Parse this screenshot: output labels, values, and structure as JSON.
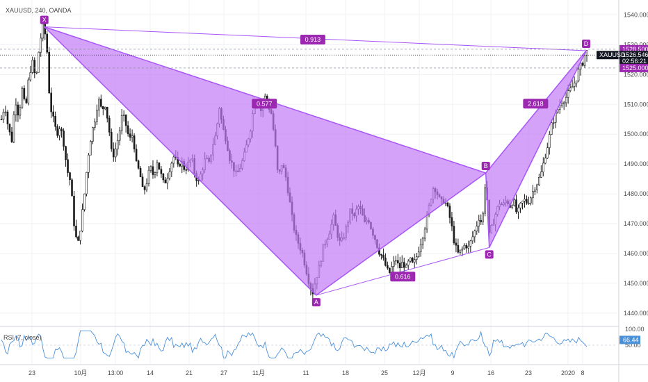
{
  "header": {
    "title": "XAUUSD, 240, OANDA"
  },
  "colors": {
    "up": "#1a1a1a",
    "down": "#1a1a1a",
    "pattern_fill": "#c27af5",
    "pattern_line": "#a855f7",
    "label_bg": "#9c27b0",
    "rsi_line": "#4a90d9",
    "grid": "#eef0f4",
    "axis_text": "#4a4a4a"
  },
  "chart_data": [
    {
      "type": "line",
      "title": "XAUUSD, 240, OANDA",
      "xlabel": "",
      "ylabel": "",
      "ylim": [
        1436,
        1545
      ],
      "y_ticks": [
        "1540.000",
        "1530.000",
        "1520.000",
        "1510.000",
        "1500.000",
        "1490.000",
        "1480.000",
        "1470.000",
        "1460.000",
        "1450.000",
        "1440.000"
      ],
      "x_ticks": [
        "23",
        "10月",
        "13:00",
        "14",
        "21",
        "27",
        "11月",
        "11",
        "18",
        "25",
        "12月",
        "9",
        "16",
        "23",
        "2020",
        "8"
      ],
      "price_series": [
        {
          "x": 0,
          "y": 1505
        },
        {
          "x": 5,
          "y": 1510
        },
        {
          "x": 10,
          "y": 1502
        },
        {
          "x": 15,
          "y": 1498
        },
        {
          "x": 20,
          "y": 1512
        },
        {
          "x": 25,
          "y": 1506
        },
        {
          "x": 30,
          "y": 1515
        },
        {
          "x": 35,
          "y": 1508
        },
        {
          "x": 40,
          "y": 1520
        },
        {
          "x": 45,
          "y": 1524
        },
        {
          "x": 50,
          "y": 1518
        },
        {
          "x": 55,
          "y": 1530
        },
        {
          "x": 60,
          "y": 1536
        },
        {
          "x": 65,
          "y": 1532
        },
        {
          "x": 70,
          "y": 1510
        },
        {
          "x": 75,
          "y": 1505
        },
        {
          "x": 80,
          "y": 1500
        },
        {
          "x": 85,
          "y": 1503
        },
        {
          "x": 90,
          "y": 1497
        },
        {
          "x": 95,
          "y": 1488
        },
        {
          "x": 100,
          "y": 1484
        },
        {
          "x": 105,
          "y": 1470
        },
        {
          "x": 110,
          "y": 1462
        },
        {
          "x": 115,
          "y": 1470
        },
        {
          "x": 120,
          "y": 1480
        },
        {
          "x": 125,
          "y": 1492
        },
        {
          "x": 130,
          "y": 1500
        },
        {
          "x": 135,
          "y": 1505
        },
        {
          "x": 140,
          "y": 1512
        },
        {
          "x": 145,
          "y": 1508
        },
        {
          "x": 150,
          "y": 1510
        },
        {
          "x": 155,
          "y": 1503
        },
        {
          "x": 160,
          "y": 1492
        },
        {
          "x": 165,
          "y": 1495
        },
        {
          "x": 170,
          "y": 1500
        },
        {
          "x": 175,
          "y": 1507
        },
        {
          "x": 180,
          "y": 1503
        },
        {
          "x": 185,
          "y": 1498
        },
        {
          "x": 190,
          "y": 1500
        },
        {
          "x": 195,
          "y": 1490
        },
        {
          "x": 200,
          "y": 1487
        },
        {
          "x": 205,
          "y": 1480
        },
        {
          "x": 210,
          "y": 1484
        },
        {
          "x": 215,
          "y": 1489
        },
        {
          "x": 220,
          "y": 1486
        },
        {
          "x": 225,
          "y": 1491
        },
        {
          "x": 230,
          "y": 1487
        },
        {
          "x": 235,
          "y": 1483
        },
        {
          "x": 240,
          "y": 1486
        },
        {
          "x": 245,
          "y": 1490
        },
        {
          "x": 250,
          "y": 1493
        },
        {
          "x": 255,
          "y": 1489
        },
        {
          "x": 260,
          "y": 1491
        },
        {
          "x": 265,
          "y": 1488
        },
        {
          "x": 270,
          "y": 1490
        },
        {
          "x": 275,
          "y": 1492
        },
        {
          "x": 280,
          "y": 1486
        },
        {
          "x": 285,
          "y": 1484
        },
        {
          "x": 290,
          "y": 1488
        },
        {
          "x": 295,
          "y": 1492
        },
        {
          "x": 300,
          "y": 1490
        },
        {
          "x": 305,
          "y": 1496
        },
        {
          "x": 310,
          "y": 1500
        },
        {
          "x": 315,
          "y": 1509
        },
        {
          "x": 320,
          "y": 1502
        },
        {
          "x": 325,
          "y": 1498
        },
        {
          "x": 330,
          "y": 1492
        },
        {
          "x": 335,
          "y": 1489
        },
        {
          "x": 340,
          "y": 1486
        },
        {
          "x": 345,
          "y": 1489
        },
        {
          "x": 350,
          "y": 1492
        },
        {
          "x": 355,
          "y": 1497
        },
        {
          "x": 360,
          "y": 1502
        },
        {
          "x": 365,
          "y": 1510
        },
        {
          "x": 370,
          "y": 1511
        },
        {
          "x": 375,
          "y": 1508
        },
        {
          "x": 380,
          "y": 1513
        },
        {
          "x": 385,
          "y": 1510
        },
        {
          "x": 390,
          "y": 1507
        },
        {
          "x": 395,
          "y": 1498
        },
        {
          "x": 400,
          "y": 1485
        },
        {
          "x": 405,
          "y": 1490
        },
        {
          "x": 410,
          "y": 1487
        },
        {
          "x": 415,
          "y": 1480
        },
        {
          "x": 420,
          "y": 1472
        },
        {
          "x": 425,
          "y": 1466
        },
        {
          "x": 430,
          "y": 1463
        },
        {
          "x": 435,
          "y": 1460
        },
        {
          "x": 440,
          "y": 1455
        },
        {
          "x": 445,
          "y": 1450
        },
        {
          "x": 450,
          "y": 1447
        },
        {
          "x": 455,
          "y": 1452
        },
        {
          "x": 460,
          "y": 1456
        },
        {
          "x": 465,
          "y": 1462
        },
        {
          "x": 470,
          "y": 1465
        },
        {
          "x": 475,
          "y": 1468
        },
        {
          "x": 480,
          "y": 1472
        },
        {
          "x": 485,
          "y": 1467
        },
        {
          "x": 490,
          "y": 1463
        },
        {
          "x": 495,
          "y": 1466
        },
        {
          "x": 500,
          "y": 1470
        },
        {
          "x": 505,
          "y": 1475
        },
        {
          "x": 510,
          "y": 1472
        },
        {
          "x": 515,
          "y": 1476
        },
        {
          "x": 520,
          "y": 1474
        },
        {
          "x": 525,
          "y": 1470
        },
        {
          "x": 530,
          "y": 1472
        },
        {
          "x": 535,
          "y": 1468
        },
        {
          "x": 540,
          "y": 1465
        },
        {
          "x": 545,
          "y": 1461
        },
        {
          "x": 550,
          "y": 1459
        },
        {
          "x": 555,
          "y": 1456
        },
        {
          "x": 560,
          "y": 1453
        },
        {
          "x": 565,
          "y": 1456
        },
        {
          "x": 570,
          "y": 1458
        },
        {
          "x": 575,
          "y": 1455
        },
        {
          "x": 580,
          "y": 1457
        },
        {
          "x": 585,
          "y": 1455
        },
        {
          "x": 590,
          "y": 1458
        },
        {
          "x": 595,
          "y": 1456
        },
        {
          "x": 600,
          "y": 1459
        },
        {
          "x": 605,
          "y": 1463
        },
        {
          "x": 610,
          "y": 1467
        },
        {
          "x": 615,
          "y": 1472
        },
        {
          "x": 620,
          "y": 1478
        },
        {
          "x": 625,
          "y": 1483
        },
        {
          "x": 630,
          "y": 1480
        },
        {
          "x": 635,
          "y": 1477
        },
        {
          "x": 640,
          "y": 1478
        },
        {
          "x": 645,
          "y": 1475
        },
        {
          "x": 650,
          "y": 1470
        },
        {
          "x": 655,
          "y": 1463
        },
        {
          "x": 660,
          "y": 1460
        },
        {
          "x": 665,
          "y": 1461
        },
        {
          "x": 670,
          "y": 1463
        },
        {
          "x": 675,
          "y": 1462
        },
        {
          "x": 680,
          "y": 1465
        },
        {
          "x": 685,
          "y": 1468
        },
        {
          "x": 690,
          "y": 1472
        },
        {
          "x": 695,
          "y": 1470
        },
        {
          "x": 700,
          "y": 1486
        },
        {
          "x": 705,
          "y": 1466
        },
        {
          "x": 710,
          "y": 1470
        },
        {
          "x": 715,
          "y": 1474
        },
        {
          "x": 720,
          "y": 1477
        },
        {
          "x": 725,
          "y": 1476
        },
        {
          "x": 730,
          "y": 1478
        },
        {
          "x": 735,
          "y": 1476
        },
        {
          "x": 740,
          "y": 1478
        },
        {
          "x": 745,
          "y": 1473
        },
        {
          "x": 750,
          "y": 1476
        },
        {
          "x": 755,
          "y": 1478
        },
        {
          "x": 760,
          "y": 1477
        },
        {
          "x": 765,
          "y": 1479
        },
        {
          "x": 770,
          "y": 1482
        },
        {
          "x": 775,
          "y": 1484
        },
        {
          "x": 780,
          "y": 1487
        },
        {
          "x": 785,
          "y": 1492
        },
        {
          "x": 790,
          "y": 1497
        },
        {
          "x": 795,
          "y": 1503
        },
        {
          "x": 800,
          "y": 1506
        },
        {
          "x": 805,
          "y": 1509
        },
        {
          "x": 810,
          "y": 1511
        },
        {
          "x": 815,
          "y": 1512
        },
        {
          "x": 820,
          "y": 1514
        },
        {
          "x": 825,
          "y": 1516
        },
        {
          "x": 830,
          "y": 1518
        },
        {
          "x": 835,
          "y": 1522
        },
        {
          "x": 840,
          "y": 1524
        },
        {
          "x": 845,
          "y": 1528
        },
        {
          "x": 850,
          "y": 1526.5
        }
      ],
      "pattern": {
        "points": [
          {
            "label": "X",
            "x": 62,
            "y": 1536
          },
          {
            "label": "A",
            "x": 455,
            "y": 1446
          },
          {
            "label": "B",
            "x": 700,
            "y": 1487
          },
          {
            "label": "C",
            "x": 705,
            "y": 1462
          },
          {
            "label": "D",
            "x": 845,
            "y": 1528
          }
        ],
        "ratios": [
          {
            "label": "0.913",
            "x": 450,
            "y": 1531.5
          },
          {
            "label": "0.577",
            "x": 380,
            "y": 1510
          },
          {
            "label": "0.616",
            "x": 580,
            "y": 1452
          },
          {
            "label": "2.618",
            "x": 772,
            "y": 1510
          }
        ]
      },
      "price_tags": [
        {
          "label": "1528.500",
          "y": 1528.5,
          "color": "#9c27b0"
        },
        {
          "label": "XAUUSD",
          "y": 1526.546,
          "value": "1526.546",
          "color": "#131722"
        },
        {
          "label": "02:56:21",
          "y": 1524.5,
          "color": "#131722"
        },
        {
          "label": "1525.000",
          "y": 1522.2,
          "color": "#9c27b0"
        }
      ]
    },
    {
      "type": "line",
      "title": "RSI (7, close)",
      "xlabel": "",
      "ylabel": "",
      "ylim": [
        0,
        100
      ],
      "y_ticks": [
        "100.00",
        "50.00"
      ],
      "current_value": "66.44"
    }
  ]
}
